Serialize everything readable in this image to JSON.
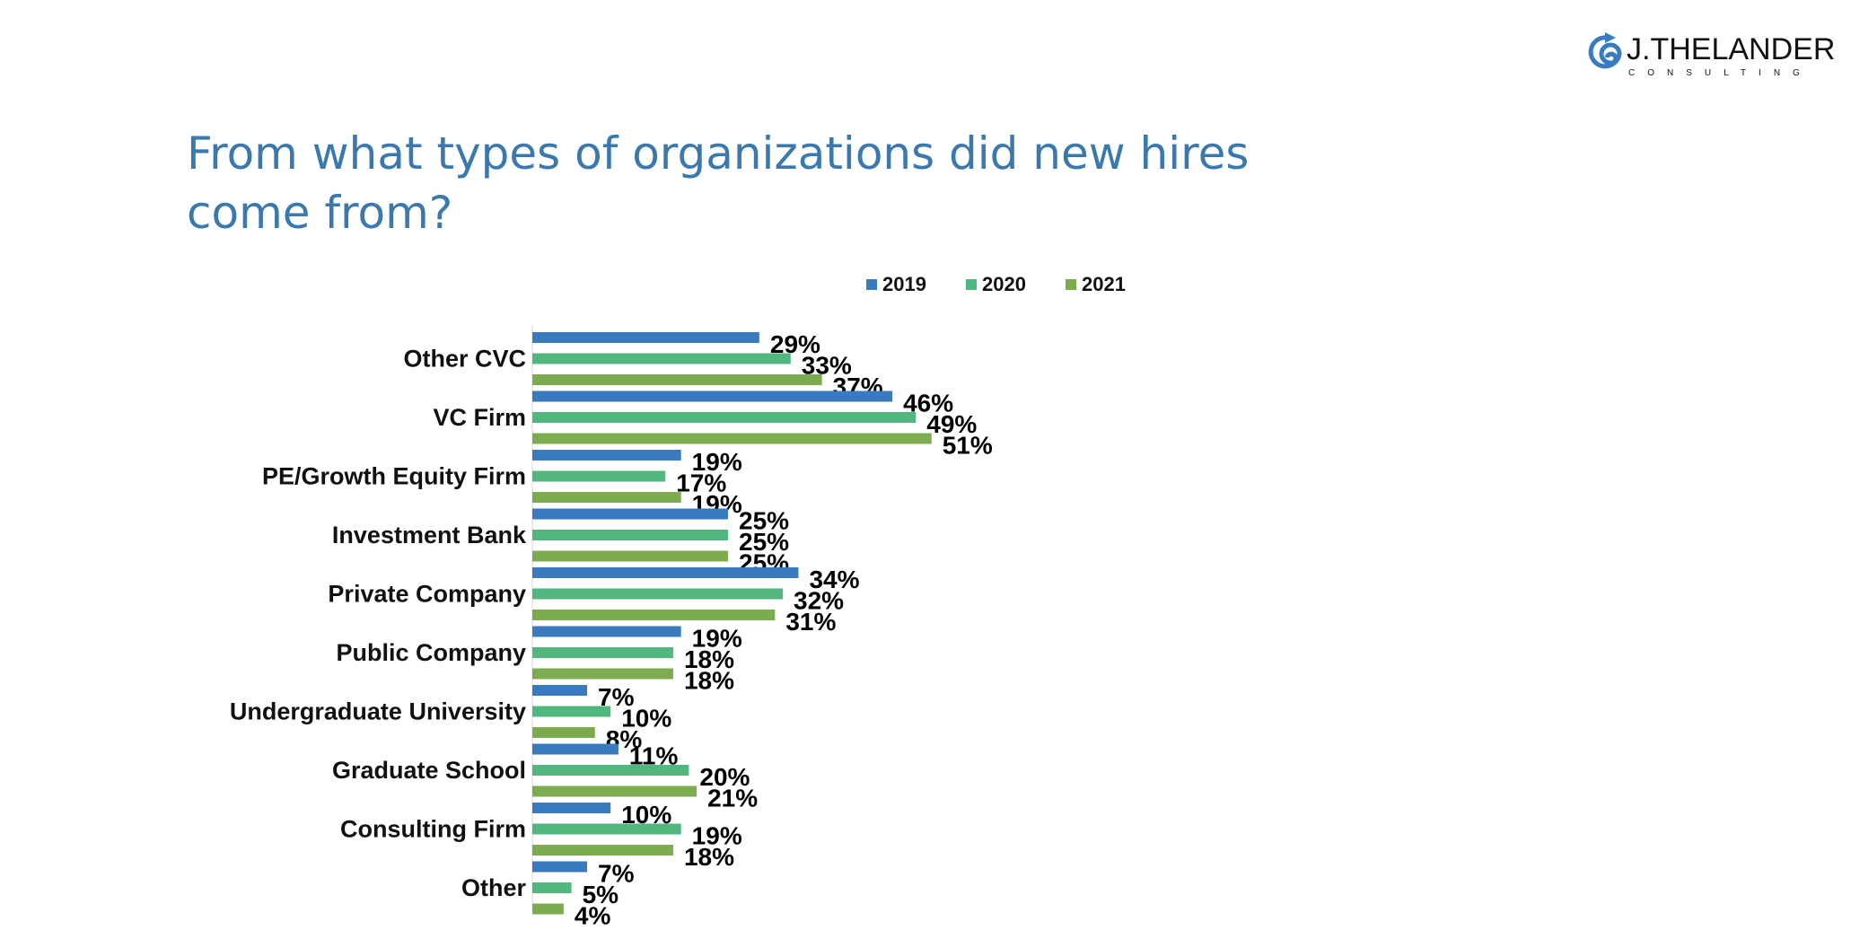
{
  "logo": {
    "name": "J.THELANDER",
    "sub": "CONSULTING"
  },
  "chart_data": {
    "type": "bar",
    "orientation": "horizontal",
    "title": "From what types of organizations did new hires come from?",
    "categories": [
      "Other CVC",
      "VC Firm",
      "PE/Growth Equity Firm",
      "Investment Bank",
      "Private Company",
      "Public Company",
      "Undergraduate University",
      "Graduate School",
      "Consulting Firm",
      "Other"
    ],
    "series": [
      {
        "name": "2019",
        "color": "#3a7abf",
        "values": [
          29,
          46,
          19,
          25,
          34,
          19,
          7,
          11,
          10,
          7
        ]
      },
      {
        "name": "2020",
        "color": "#52b67f",
        "values": [
          33,
          49,
          17,
          25,
          32,
          18,
          10,
          20,
          19,
          5
        ]
      },
      {
        "name": "2021",
        "color": "#7dac50",
        "values": [
          37,
          51,
          19,
          25,
          31,
          18,
          8,
          21,
          18,
          4
        ]
      }
    ],
    "value_suffix": "%",
    "legend": "top-center",
    "xlim": [
      0,
      55
    ],
    "grid": false
  }
}
